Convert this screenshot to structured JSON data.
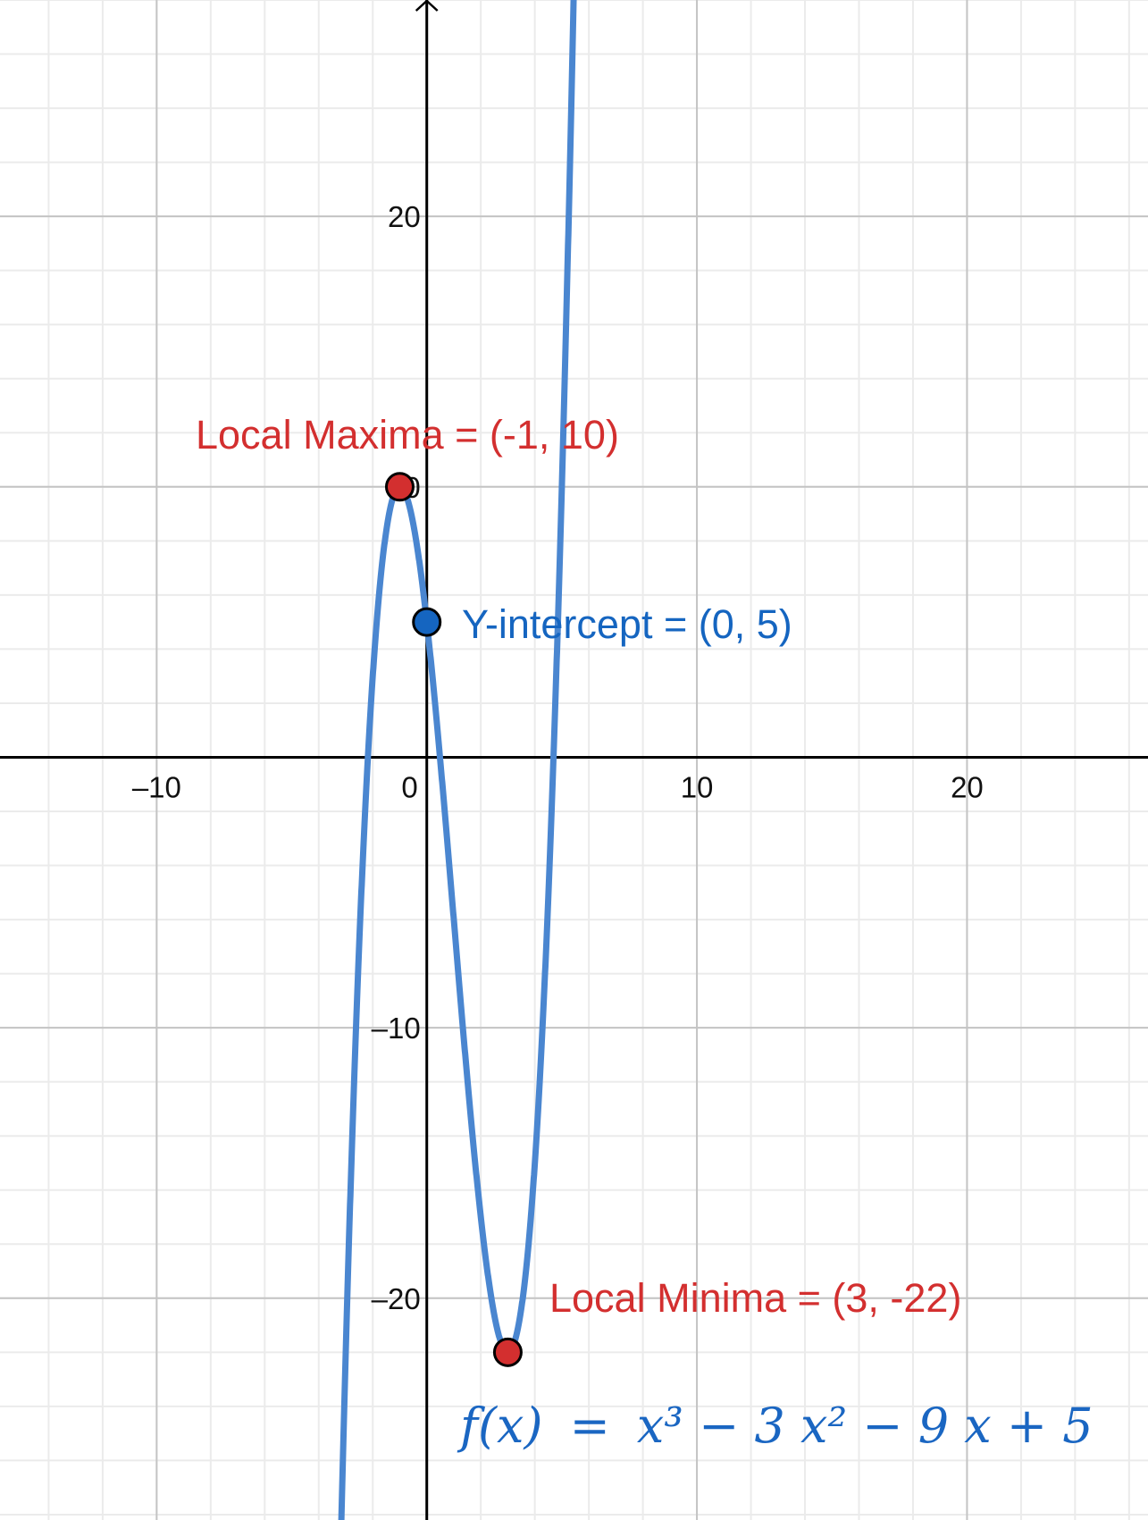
{
  "chart_data": {
    "type": "line",
    "title": "",
    "xlabel": "",
    "ylabel": "",
    "xlim": [
      -15.8,
      26.7
    ],
    "ylim": [
      -28.2,
      28
    ],
    "grid": true,
    "major_step": 10,
    "minor_step": 2,
    "x_ticks": [
      {
        "value": -10,
        "label": "–10"
      },
      {
        "value": 0,
        "label": "0"
      },
      {
        "value": 10,
        "label": "10"
      },
      {
        "value": 20,
        "label": "20"
      }
    ],
    "y_ticks": [
      {
        "value": 20,
        "label": "20"
      },
      {
        "value": 10,
        "label": "10"
      },
      {
        "value": -10,
        "label": "–10"
      },
      {
        "value": -20,
        "label": "–20"
      }
    ],
    "series": [
      {
        "expression": "x^3 - 3x^2 - 9x + 5",
        "coefficients": [
          1,
          -3,
          -9,
          5
        ],
        "color": "#4a86d0"
      }
    ],
    "points": [
      {
        "x": -1,
        "y": 10,
        "color": "#d32f2f",
        "label": "Local Maxima = (-1, 10)"
      },
      {
        "x": 0,
        "y": 5,
        "color": "#1565c0",
        "label": "Y-intercept = (0, 5)"
      },
      {
        "x": 3,
        "y": -22,
        "color": "#d32f2f",
        "label": "Local Minima = (3, -22)"
      }
    ],
    "formula": {
      "lhs": "f(x)",
      "eq": "=",
      "rhs": "x³ − 3 x² − 9 x + 5"
    }
  }
}
